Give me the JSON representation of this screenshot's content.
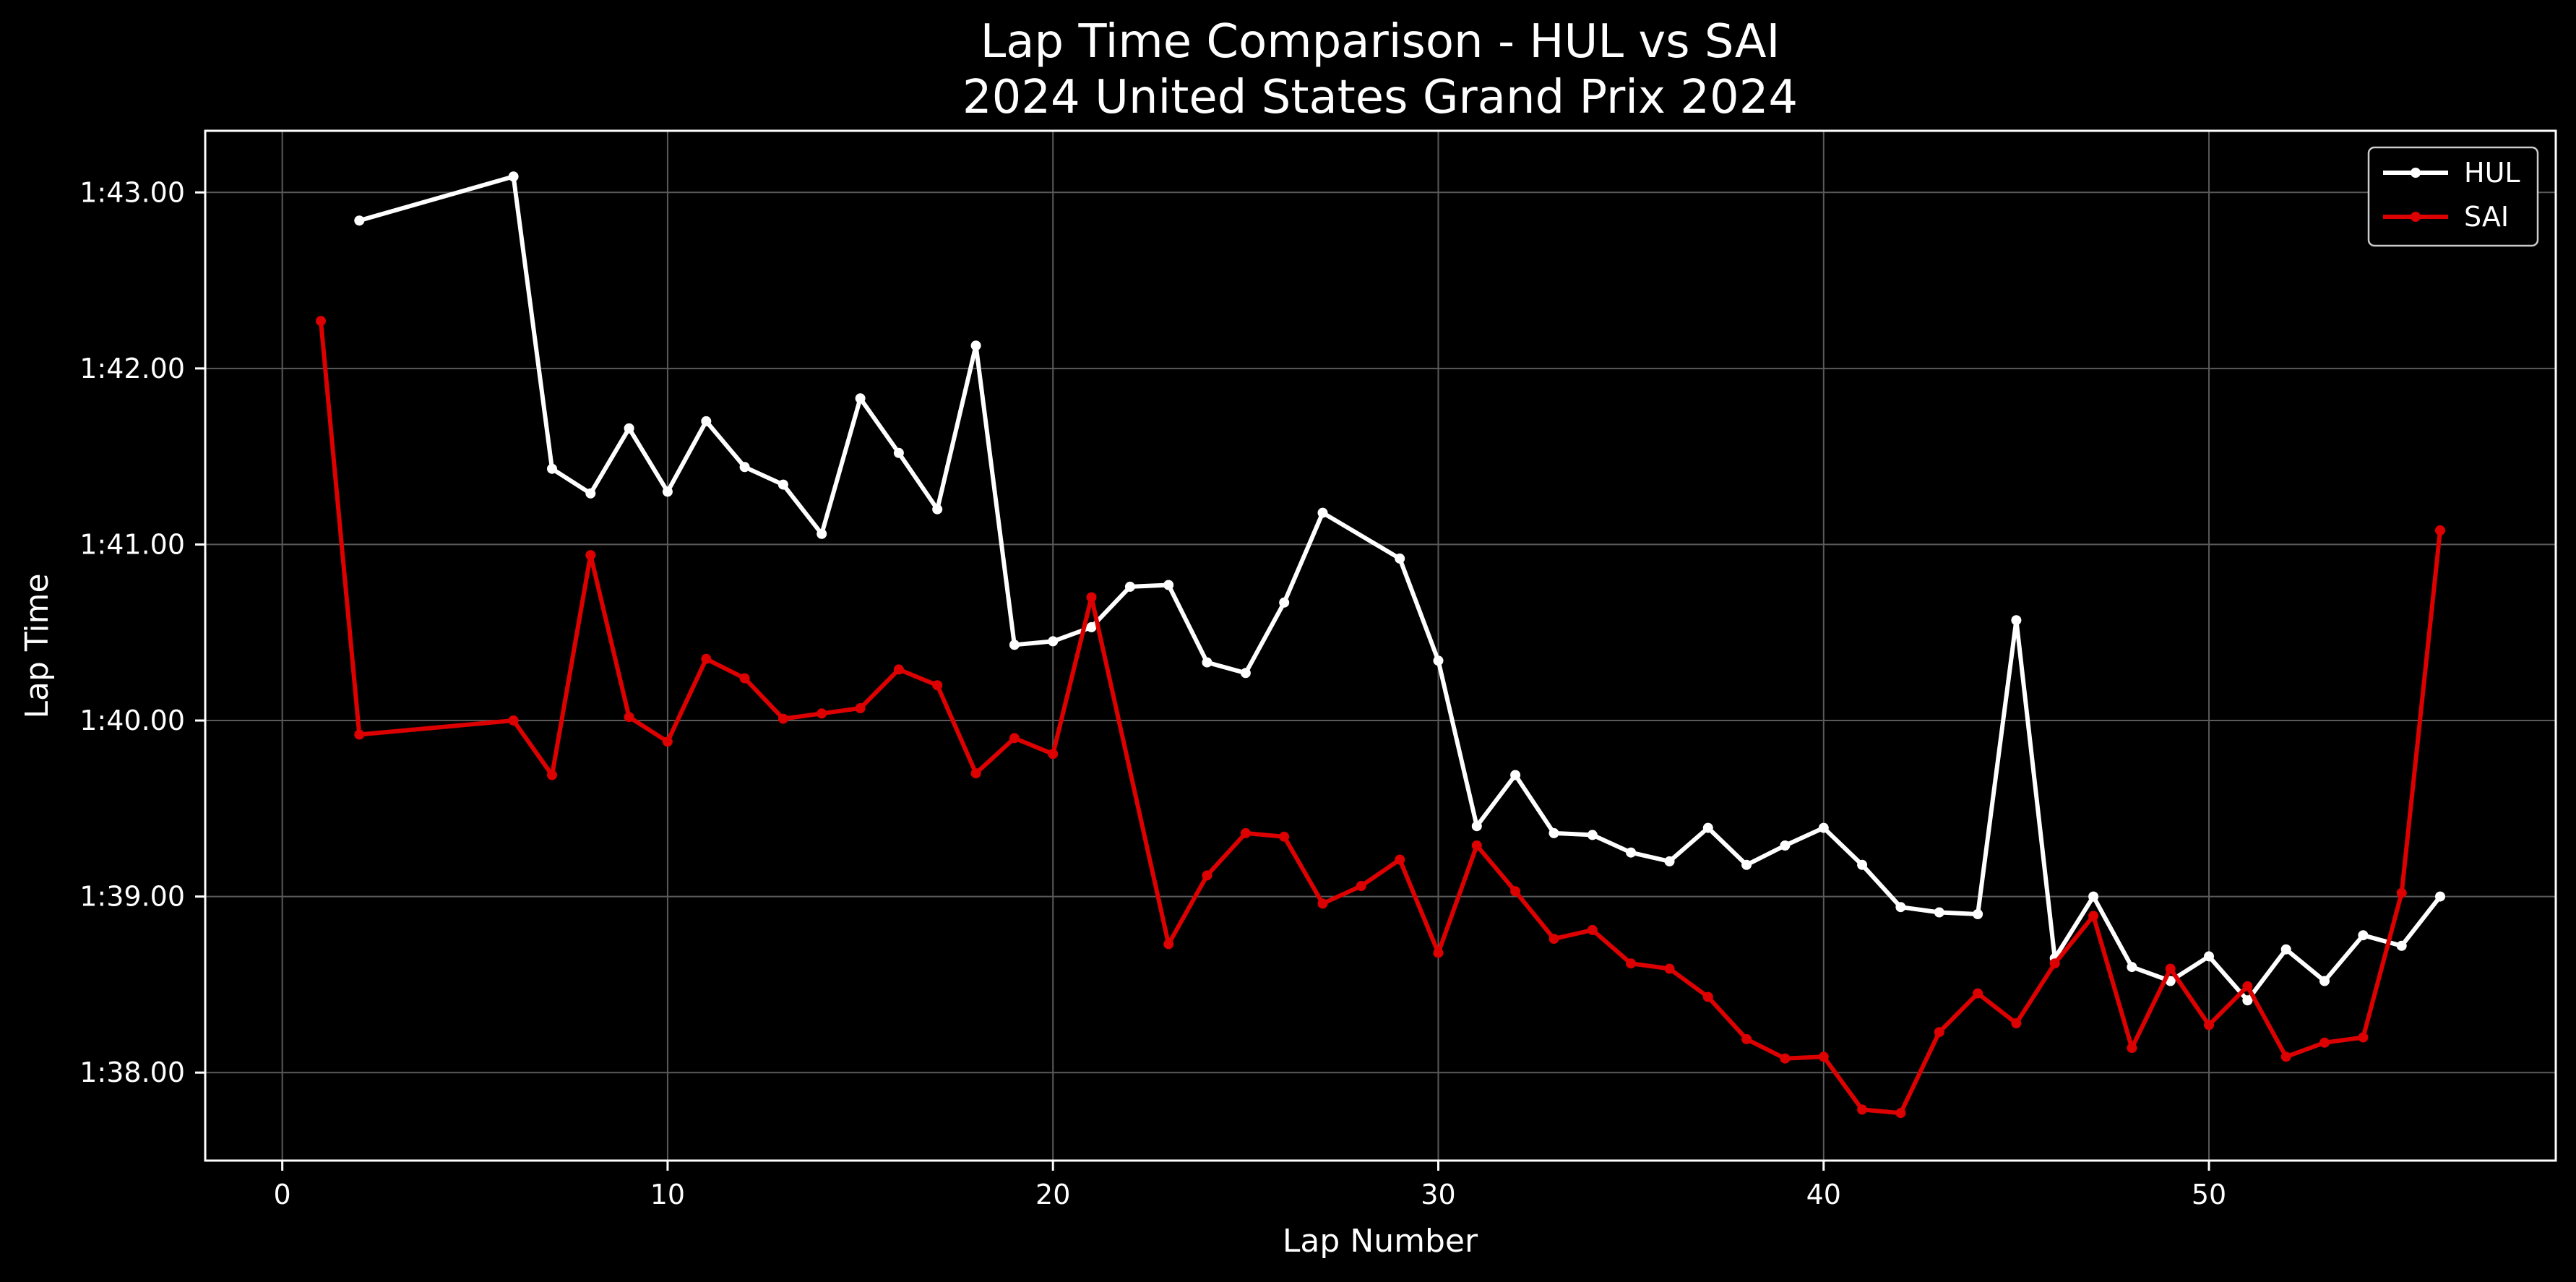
{
  "chart_data": {
    "type": "line",
    "title": "Lap Time Comparison - HUL vs SAI",
    "subtitle": "2024 United States Grand Prix 2024",
    "xlabel": "Lap Number",
    "ylabel": "Lap Time",
    "xlim": [
      -2,
      59
    ],
    "ylim": [
      97.5,
      103.35
    ],
    "xticks": [
      0,
      10,
      20,
      30,
      40,
      50
    ],
    "yticks": [
      {
        "value": 98,
        "label": "1:38.00"
      },
      {
        "value": 99,
        "label": "1:39.00"
      },
      {
        "value": 100,
        "label": "1:40.00"
      },
      {
        "value": 101,
        "label": "1:41.00"
      },
      {
        "value": 102,
        "label": "1:42.00"
      },
      {
        "value": 103,
        "label": "1:43.00"
      }
    ],
    "grid": true,
    "legend_position": "top-right",
    "colors": {
      "background": "#000000",
      "axes": "#ffffff",
      "grid": "#5a5a5a"
    },
    "series": [
      {
        "name": "HUL",
        "color": "#ffffff",
        "x": [
          2,
          6,
          7,
          8,
          9,
          10,
          11,
          12,
          13,
          14,
          15,
          16,
          17,
          18,
          19,
          20,
          21,
          22,
          23,
          24,
          25,
          26,
          27,
          29,
          30,
          31,
          32,
          33,
          34,
          35,
          36,
          37,
          38,
          39,
          40,
          41,
          42,
          43,
          44,
          45,
          46,
          47,
          48,
          49,
          50,
          51,
          52,
          53,
          54,
          55,
          56
        ],
        "y": [
          102.84,
          103.09,
          101.43,
          101.29,
          101.66,
          101.3,
          101.7,
          101.44,
          101.34,
          101.06,
          101.83,
          101.52,
          101.2,
          102.13,
          100.43,
          100.45,
          100.53,
          100.76,
          100.77,
          100.33,
          100.27,
          100.67,
          101.18,
          100.92,
          100.34,
          99.4,
          99.69,
          99.36,
          99.35,
          99.25,
          99.2,
          99.39,
          99.18,
          99.29,
          99.39,
          99.18,
          98.94,
          98.91,
          98.9,
          100.57,
          98.65,
          99.0,
          98.6,
          98.52,
          98.66,
          98.41,
          98.7,
          98.52,
          98.78,
          98.72,
          99.0
        ]
      },
      {
        "name": "SAI",
        "color": "#dc0000",
        "x": [
          1,
          2,
          6,
          7,
          8,
          9,
          10,
          11,
          12,
          13,
          14,
          15,
          16,
          17,
          18,
          19,
          20,
          21,
          23,
          24,
          25,
          26,
          27,
          28,
          29,
          30,
          31,
          32,
          33,
          34,
          35,
          36,
          37,
          38,
          39,
          40,
          41,
          42,
          43,
          44,
          45,
          46,
          47,
          48,
          49,
          50,
          51,
          52,
          53,
          54,
          55,
          56
        ],
        "y": [
          102.27,
          99.92,
          100.0,
          99.69,
          100.94,
          100.02,
          99.88,
          100.35,
          100.24,
          100.01,
          100.04,
          100.07,
          100.29,
          100.2,
          99.7,
          99.9,
          99.81,
          100.7,
          98.73,
          99.12,
          99.36,
          99.34,
          98.96,
          99.06,
          99.21,
          98.68,
          99.29,
          99.03,
          98.76,
          98.81,
          98.62,
          98.59,
          98.43,
          98.19,
          98.08,
          98.09,
          97.79,
          97.77,
          98.23,
          98.45,
          98.28,
          98.62,
          98.89,
          98.14,
          98.59,
          98.27,
          98.49,
          98.09,
          98.17,
          98.2,
          99.02,
          101.08
        ]
      }
    ]
  }
}
